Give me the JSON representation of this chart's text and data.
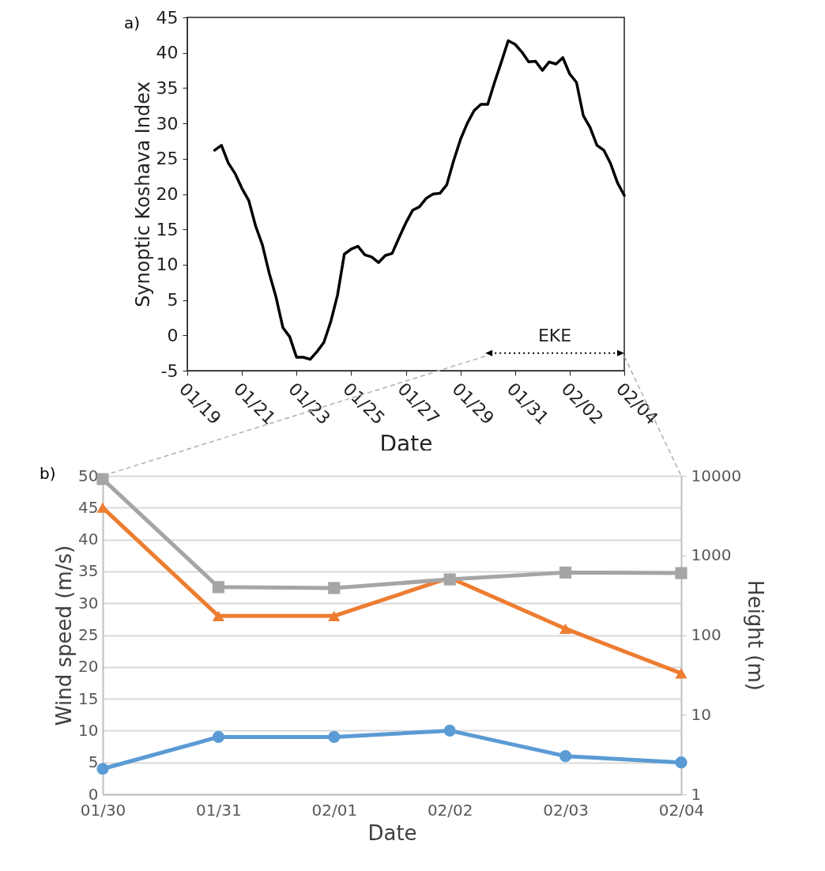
{
  "chart_data": [
    {
      "type": "line",
      "xlabel": "Date",
      "ylabel": "Synoptic Koshava Index",
      "x": [
        "--01-20T00:00",
        "--01-20T06:00",
        "--01-20T12:00",
        "--01-20T18:00",
        "--01-21T00:00",
        "--01-21T06:00",
        "--01-21T12:00",
        "--01-21T18:00",
        "--01-22T00:00",
        "--01-22T06:00",
        "--01-22T12:00",
        "--01-22T18:00",
        "--01-23T00:00",
        "--01-23T06:00",
        "--01-23T12:00",
        "--01-23T18:00",
        "--01-24T00:00",
        "--01-24T06:00",
        "--01-24T12:00",
        "--01-24T18:00",
        "--01-25T00:00",
        "--01-25T06:00",
        "--01-25T12:00",
        "--01-25T18:00",
        "--01-26T00:00",
        "--01-26T06:00",
        "--01-26T12:00",
        "--01-26T18:00",
        "--01-27T00:00",
        "--01-27T06:00",
        "--01-27T12:00",
        "--01-27T18:00",
        "--01-28T00:00",
        "--01-28T06:00",
        "--01-28T12:00",
        "--01-28T18:00",
        "--01-29T00:00",
        "--01-29T06:00",
        "--01-29T12:00",
        "--01-29T18:00",
        "--01-30T00:00",
        "--01-30T06:00",
        "--01-30T12:00",
        "--01-30T18:00",
        "--01-31T00:00",
        "--01-31T06:00",
        "--01-31T12:00",
        "--01-31T18:00",
        "--02-01T00:00",
        "--02-01T06:00",
        "--02-01T12:00",
        "--02-01T18:00",
        "--02-02T00:00",
        "--02-02T06:00",
        "--02-02T12:00",
        "--02-02T18:00",
        "--02-03T00:00",
        "--02-03T06:00",
        "--02-03T12:00",
        "--02-03T18:00",
        "--02-04T00:00"
      ],
      "series": [
        {
          "color": "#000000",
          "values": [
            26.2,
            26.9,
            24.4,
            22.9,
            20.8,
            19.1,
            15.5,
            12.8,
            8.8,
            5.4,
            1.1,
            -0.2,
            -3.1,
            -3.1,
            -3.4,
            -2.3,
            -1.0,
            1.9,
            5.7,
            11.5,
            12.2,
            12.6,
            11.4,
            11.1,
            10.3,
            11.3,
            11.6,
            13.8,
            15.9,
            17.7,
            18.2,
            19.4,
            20.0,
            20.1,
            21.3,
            24.7,
            27.7,
            30.0,
            31.8,
            32.7,
            32.7,
            35.8,
            38.7,
            41.7,
            41.2,
            40.1,
            38.7,
            38.8,
            37.5,
            38.7,
            38.4,
            39.3,
            37.0,
            35.8,
            31.1,
            29.4,
            26.9,
            26.2,
            24.3,
            21.6,
            19.8
          ]
        }
      ],
      "xlim": [
        "--01-19",
        "--02-04"
      ],
      "xticks": [
        {
          "value": "--01-19",
          "label": "01/19"
        },
        {
          "value": "--01-21",
          "label": "01/21"
        },
        {
          "value": "--01-23",
          "label": "01/23"
        },
        {
          "value": "--01-25",
          "label": "01/25"
        },
        {
          "value": "--01-27",
          "label": "01/27"
        },
        {
          "value": "--01-29",
          "label": "01/29"
        },
        {
          "value": "--01-31",
          "label": "01/31"
        },
        {
          "value": "--02-02",
          "label": "02/02"
        },
        {
          "value": "--02-04",
          "label": "02/04"
        }
      ],
      "ylim": [
        -5,
        45
      ],
      "yticks": [
        -5,
        0,
        5,
        10,
        15,
        20,
        25,
        30,
        35,
        40,
        45
      ],
      "annotations": [
        "a)",
        "EKE"
      ]
    },
    {
      "type": "line",
      "xlabel": "Date",
      "ylabel": "Wind speed (m/s)",
      "y2label": "Height (m)",
      "annotations": [
        "b)"
      ],
      "categories": [
        "01/30",
        "01/31",
        "02/01",
        "02/02",
        "02/03",
        "02/04"
      ],
      "series": [
        {
          "color": "#5b9bd5",
          "marker": "circle",
          "values": [
            4,
            9,
            9,
            10,
            6,
            5
          ]
        },
        {
          "color": "#ed7d31",
          "marker": "triangle",
          "values": [
            45,
            28,
            28,
            34,
            26,
            19
          ]
        },
        {
          "color": "#a5a5a5",
          "marker": "square",
          "axis": "y2",
          "values": [
            9100,
            400,
            390,
            500,
            610,
            600
          ]
        }
      ],
      "ylim": [
        0,
        50
      ],
      "yticks": [
        0,
        5,
        10,
        15,
        20,
        25,
        30,
        35,
        40,
        45,
        50
      ],
      "y2lim": [
        1,
        10000
      ],
      "y2ticks": [
        1,
        10,
        100,
        1000,
        10000
      ],
      "log": "y2",
      "grid": "y"
    }
  ]
}
